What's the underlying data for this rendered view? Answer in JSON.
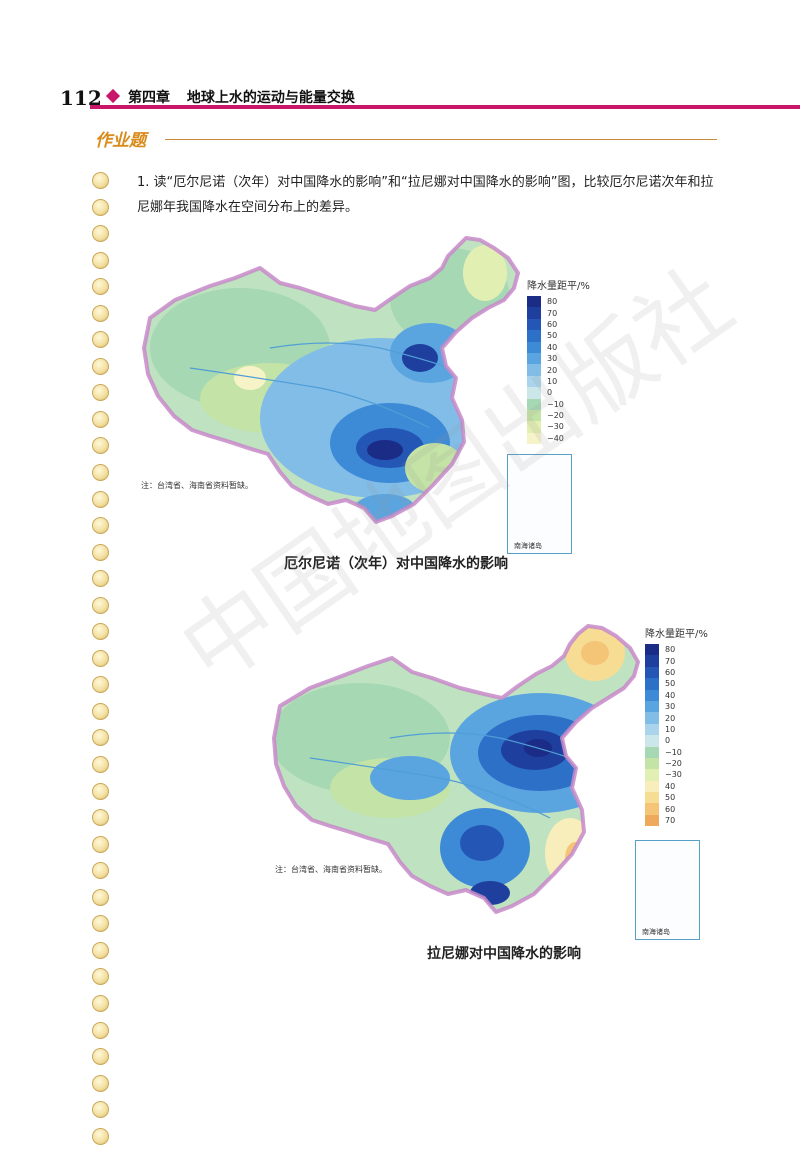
{
  "header": {
    "page_number": "112",
    "chapter": "第四章",
    "chapter_title": "地球上水的运动与能量交换"
  },
  "section": {
    "title": "作业题"
  },
  "question": {
    "text": "1. 读“厄尔尼诺（次年）对中国降水的影响”和“拉尼娜对中国降水的影响”图，比较厄尔尼诺次年和拉尼娜年我国降水在空间分布上的差异。"
  },
  "figures": [
    {
      "caption": "厄尔尼诺（次年）对中国降水的影响",
      "note": "注：台湾省、海南省资料暂缺。",
      "inset_label": "南海诸岛",
      "legend": {
        "title": "降水量距平/%",
        "items": [
          {
            "label": "80",
            "color": "#1b2c86"
          },
          {
            "label": "70",
            "color": "#1f3f9e"
          },
          {
            "label": "60",
            "color": "#2356b5"
          },
          {
            "label": "50",
            "color": "#2c70c8"
          },
          {
            "label": "40",
            "color": "#3d8ad6"
          },
          {
            "label": "30",
            "color": "#5aa5e0"
          },
          {
            "label": "20",
            "color": "#82bde8"
          },
          {
            "label": "10",
            "color": "#a9d4ec"
          },
          {
            "label": "0",
            "color": "#cbe7ea"
          },
          {
            "label": "−10",
            "color": "#a6d8b4"
          },
          {
            "label": "−20",
            "color": "#c4e3a6"
          },
          {
            "label": "−30",
            "color": "#e2efb2"
          },
          {
            "label": "−40",
            "color": "#f7f3c8"
          }
        ]
      }
    },
    {
      "caption": "拉尼娜对中国降水的影响",
      "note": "注：台湾省、海南省资料暂缺。",
      "inset_label": "南海诸岛",
      "legend": {
        "title": "降水量距平/%",
        "items": [
          {
            "label": "80",
            "color": "#1b2c86"
          },
          {
            "label": "70",
            "color": "#1f3f9e"
          },
          {
            "label": "60",
            "color": "#2356b5"
          },
          {
            "label": "50",
            "color": "#2c70c8"
          },
          {
            "label": "40",
            "color": "#3d8ad6"
          },
          {
            "label": "30",
            "color": "#5aa5e0"
          },
          {
            "label": "20",
            "color": "#82bde8"
          },
          {
            "label": "10",
            "color": "#a9d4ec"
          },
          {
            "label": "0",
            "color": "#cbe7ea"
          },
          {
            "label": "−10",
            "color": "#a6d8b4"
          },
          {
            "label": "−20",
            "color": "#c4e3a6"
          },
          {
            "label": "−30",
            "color": "#e2efb2"
          },
          {
            "label": "40",
            "color": "#f7eebb"
          },
          {
            "label": "50",
            "color": "#f7dc94"
          },
          {
            "label": "60",
            "color": "#f5c577"
          },
          {
            "label": "70",
            "color": "#eea95a"
          }
        ]
      }
    }
  ],
  "watermark": "中国地图出版社"
}
